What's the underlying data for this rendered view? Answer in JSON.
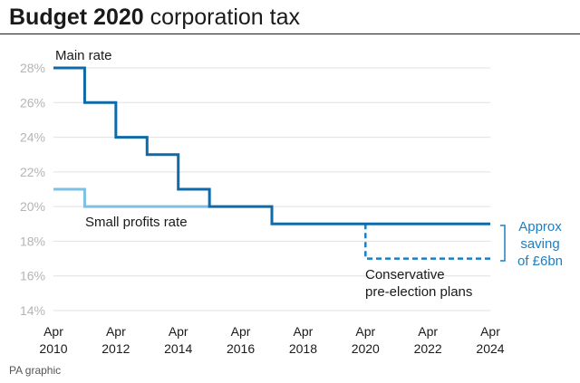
{
  "title": {
    "bold": "Budget 2020",
    "rest": " corporation tax"
  },
  "source": "PA graphic",
  "colors": {
    "main": "#0f6aa8",
    "small": "#7cc0e5",
    "plans": "#1b7fc4",
    "grid": "#e0e0e0",
    "axis_text": "#b5b5b5"
  },
  "chart_data": {
    "type": "line",
    "title": "Budget 2020 corporation tax",
    "xlabel": "",
    "ylabel": "",
    "xlim": [
      2010,
      2024
    ],
    "ylim": [
      14,
      28
    ],
    "y_ticks": [
      14,
      16,
      18,
      20,
      22,
      24,
      26,
      28
    ],
    "y_tick_labels": [
      "14%",
      "16%",
      "18%",
      "20%",
      "22%",
      "24%",
      "26%",
      "28%"
    ],
    "x_ticks": [
      2010,
      2012,
      2014,
      2016,
      2018,
      2020,
      2022,
      2024
    ],
    "x_tick_labels": [
      [
        "Apr",
        "2010"
      ],
      [
        "Apr",
        "2012"
      ],
      [
        "Apr",
        "2014"
      ],
      [
        "Apr",
        "2016"
      ],
      [
        "Apr",
        "2018"
      ],
      [
        "Apr",
        "2020"
      ],
      [
        "Apr",
        "2022"
      ],
      [
        "Apr",
        "2024"
      ]
    ],
    "grid": true,
    "series": [
      {
        "name": "Main rate",
        "style": "step",
        "color": "#0f6aa8",
        "x": [
          2010,
          2011,
          2012,
          2013,
          2014,
          2015,
          2017,
          2024
        ],
        "y": [
          28,
          26,
          24,
          23,
          21,
          20,
          19,
          19
        ]
      },
      {
        "name": "Small profits rate",
        "style": "step",
        "color": "#7cc0e5",
        "x": [
          2010,
          2011,
          2015
        ],
        "y": [
          21,
          20,
          20
        ]
      },
      {
        "name": "Conservative pre-election plans",
        "style": "dashed",
        "color": "#1b7fc4",
        "x": [
          2020,
          2020,
          2024
        ],
        "y": [
          19,
          17,
          17
        ]
      }
    ],
    "labels": {
      "main": "Main rate",
      "small": "Small profits rate",
      "plans_line1": "Conservative",
      "plans_line2": "pre-election plans",
      "saving_line1": "Approx",
      "saving_line2": "saving",
      "saving_line3": "of £6bn"
    }
  }
}
